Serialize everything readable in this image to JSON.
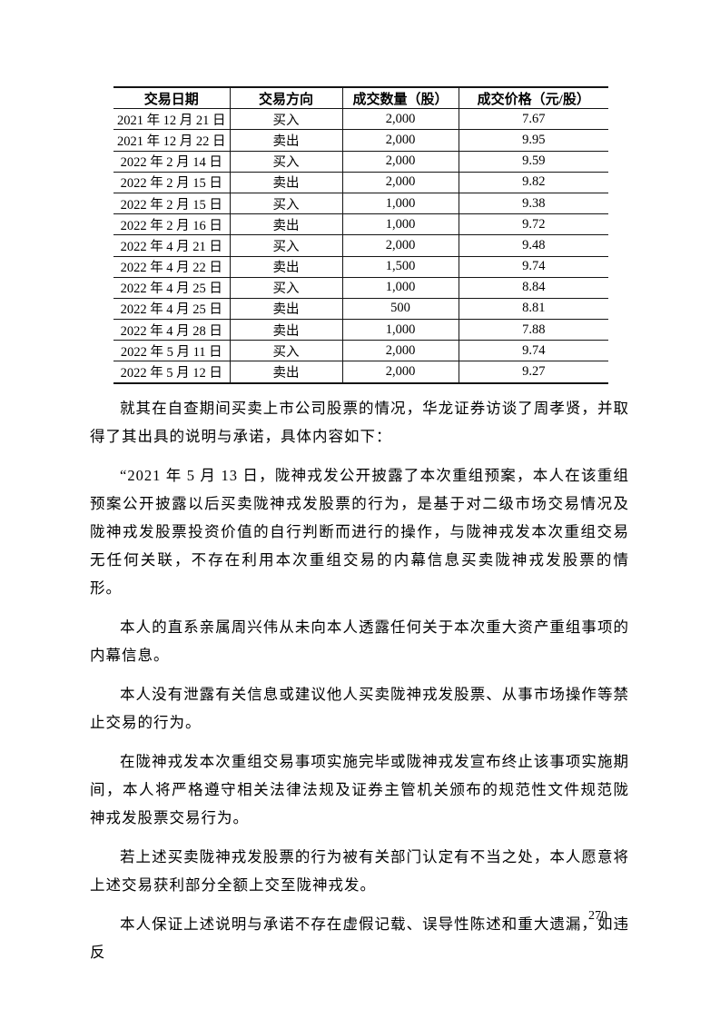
{
  "document": {
    "page_number": "270",
    "table": {
      "headers": [
        "交易日期",
        "交易方向",
        "成交数量（股）",
        "成交价格（元/股）"
      ],
      "rows": [
        [
          "2021 年 12 月 21 日",
          "买入",
          "2,000",
          "7.67"
        ],
        [
          "2021 年 12 月 22 日",
          "卖出",
          "2,000",
          "9.95"
        ],
        [
          "2022 年 2 月 14 日",
          "买入",
          "2,000",
          "9.59"
        ],
        [
          "2022 年 2 月 15 日",
          "卖出",
          "2,000",
          "9.82"
        ],
        [
          "2022 年 2 月 15 日",
          "买入",
          "1,000",
          "9.38"
        ],
        [
          "2022 年 2 月 16 日",
          "卖出",
          "1,000",
          "9.72"
        ],
        [
          "2022 年 4 月 21 日",
          "买入",
          "2,000",
          "9.48"
        ],
        [
          "2022 年 4 月 22 日",
          "卖出",
          "1,500",
          "9.74"
        ],
        [
          "2022 年 4 月 25 日",
          "买入",
          "1,000",
          "8.84"
        ],
        [
          "2022 年 4 月 25 日",
          "卖出",
          "500",
          "8.81"
        ],
        [
          "2022 年 4 月 28 日",
          "卖出",
          "1,000",
          "7.88"
        ],
        [
          "2022 年 5 月 11 日",
          "买入",
          "2,000",
          "9.74"
        ],
        [
          "2022 年 5 月 12 日",
          "卖出",
          "2,000",
          "9.27"
        ]
      ]
    },
    "paragraphs": [
      "就其在自查期间买卖上市公司股票的情况，华龙证券访谈了周孝贤，并取得了其出具的说明与承诺，具体内容如下：",
      "“2021 年 5 月 13 日，陇神戎发公开披露了本次重组预案，本人在该重组预案公开披露以后买卖陇神戎发股票的行为，是基于对二级市场交易情况及陇神戎发股票投资价值的自行判断而进行的操作，与陇神戎发本次重组交易无任何关联，不存在利用本次重组交易的内幕信息买卖陇神戎发股票的情形。",
      "本人的直系亲属周兴伟从未向本人透露任何关于本次重大资产重组事项的内幕信息。",
      "本人没有泄露有关信息或建议他人买卖陇神戎发股票、从事市场操作等禁止交易的行为。",
      "在陇神戎发本次重组交易事项实施完毕或陇神戎发宣布终止该事项实施期间，本人将严格遵守相关法律法规及证券主管机关颁布的规范性文件规范陇神戎发股票交易行为。",
      "若上述买卖陇神戎发股票的行为被有关部门认定有不当之处，本人愿意将上述交易获利部分全额上交至陇神戎发。",
      "本人保证上述说明与承诺不存在虚假记载、误导性陈述和重大遗漏，如违反"
    ]
  }
}
